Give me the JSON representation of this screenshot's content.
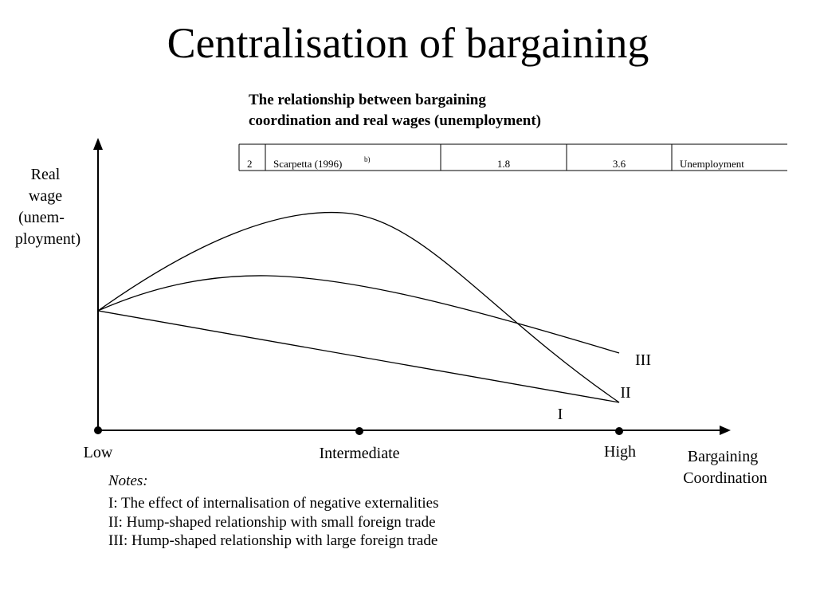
{
  "title": "Centralisation of bargaining",
  "table_caption": [
    "The relationship between bargaining",
    "coordination and real wages (unemployment)"
  ],
  "table": {
    "rows": [
      {
        "cells": [
          "2",
          "Scarpetta (1996)",
          "1.8",
          "3.6",
          "Unemployment"
        ],
        "superscript": "b)"
      }
    ]
  },
  "diagram": {
    "y_axis_label": [
      "Real",
      "wage",
      "(unem-",
      "ployment)"
    ],
    "x_axis_label": [
      "Bargaining",
      "Coordination"
    ],
    "x_points": [
      "Low",
      "Intermediate",
      "High"
    ],
    "curve_labels": [
      "I",
      "II",
      "III"
    ]
  },
  "notes": {
    "heading": "Notes:",
    "items": [
      "I: The effect of internalisation of negative externalities",
      "II: Hump-shaped relationship with small foreign trade",
      "III: Hump-shaped relationship with large foreign trade"
    ]
  }
}
